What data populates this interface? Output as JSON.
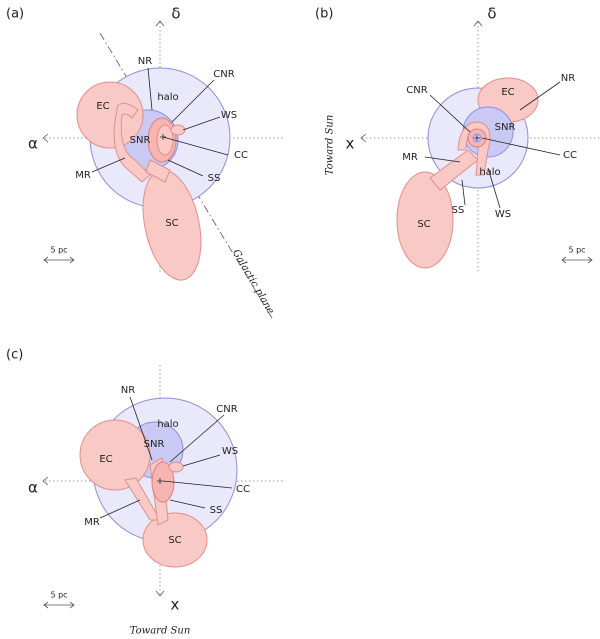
{
  "panels": [
    {
      "label": "(a)",
      "axis_up": "δ",
      "axis_left": "α",
      "regions": [
        "NR",
        "CNR",
        "EC",
        "halo",
        "WS",
        "SNR",
        "CC",
        "MR",
        "SS",
        "SC"
      ],
      "scale": "5 pc",
      "plane": "Galactic plane"
    },
    {
      "label": "(b)",
      "axis_up": "δ",
      "axis_left": "x",
      "sun": "Toward Sun",
      "regions": [
        "CNR",
        "NR",
        "EC",
        "SNR",
        "MR",
        "CC",
        "halo",
        "SS",
        "WS",
        "SC"
      ],
      "scale": "5 pc"
    },
    {
      "label": "(c)",
      "axis_left": "α",
      "axis_down": "x",
      "sun": "Toward Sun",
      "regions": [
        "NR",
        "CNR",
        "halo",
        "SNR",
        "WS",
        "EC",
        "CC",
        "MR",
        "SS",
        "SC"
      ],
      "scale": "5 pc"
    }
  ]
}
